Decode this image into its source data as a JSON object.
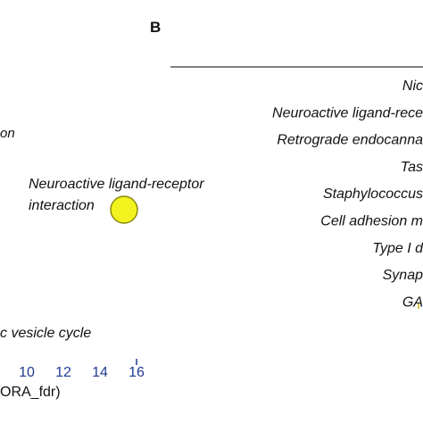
{
  "chart_data": [
    {
      "type": "scatter",
      "panel": "",
      "xlabel": "ORA_fdr)",
      "x_ticks": [
        "10",
        "12",
        "14",
        "16"
      ],
      "points": [
        {
          "label_lines": [
            "Neuroactive ligand-receptor",
            "interaction"
          ],
          "color": "#f2f21e",
          "edge": "#8a8a12"
        }
      ],
      "partial_labels": [
        "on",
        "c vesicle cycle"
      ]
    },
    {
      "type": "table",
      "panel": "B",
      "rows": [
        "Nic",
        "Neuroactive ligand-rece",
        "Retrograde endocanna",
        "Tas",
        "Staphylococcus",
        "Cell adhesion m",
        "Type I d",
        "Synap",
        "GA"
      ]
    }
  ]
}
